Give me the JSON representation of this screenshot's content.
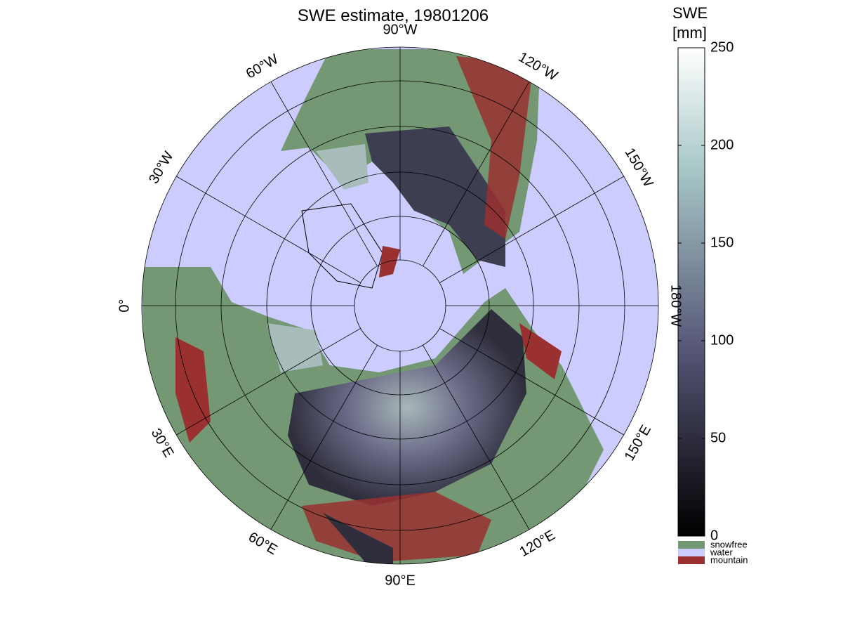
{
  "title": "SWE estimate, 19801206",
  "meridian_labels": [
    "0°",
    "30°E",
    "60°E",
    "90°E",
    "120°E",
    "150°E",
    "180°W",
    "150°W",
    "120°W",
    "90°W",
    "60°W",
    "30°W"
  ],
  "colorbar": {
    "label": [
      "SWE",
      "[mm]"
    ],
    "lim": [
      0,
      250
    ],
    "ticks": [
      0,
      50,
      100,
      150,
      200,
      250
    ]
  },
  "legend": [
    {
      "name": "snowfree",
      "color": "#739873"
    },
    {
      "name": "water",
      "color": "#ccccff"
    },
    {
      "name": "mountain",
      "color": "#9a3030"
    }
  ]
}
